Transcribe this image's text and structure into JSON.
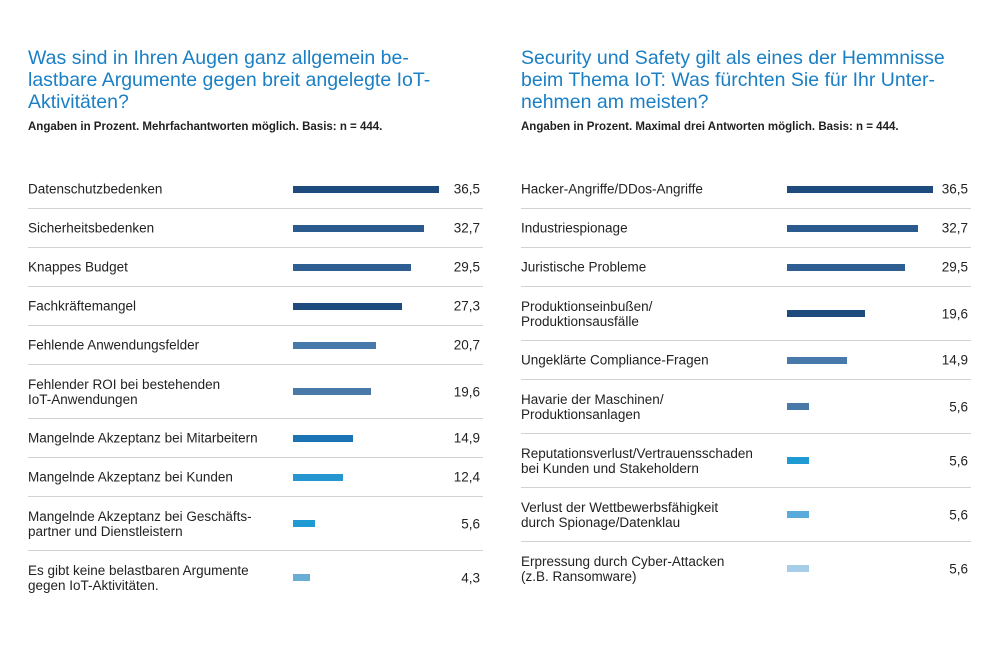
{
  "chart_data": [
    {
      "type": "bar",
      "orientation": "horizontal",
      "title": "Was sind in Ihren Augen ganz allgemein be-\nlastbare Argumente gegen breit angelegte IoT-\nAktivitäten?",
      "subtitle": "Angaben in Prozent. Mehrfachantworten möglich. Basis: n = 444.",
      "xlim": [
        0,
        36.5
      ],
      "categories": [
        "Datenschutzbedenken",
        "Sicherheitsbedenken",
        "Knappes Budget",
        "Fachkräftemangel",
        "Fehlende Anwendungsfelder",
        "Fehlender ROI bei bestehenden\nIoT-Anwendungen",
        "Mangelnde Akzeptanz bei Mitarbeitern",
        "Mangelnde Akzeptanz bei Kunden",
        "Mangelnde Akzeptanz bei Geschäfts-\npartner und Dienstleistern",
        "Es gibt keine belastbaren Argumente\ngegen IoT-Aktivitäten."
      ],
      "values": [
        36.5,
        32.7,
        29.5,
        27.3,
        20.7,
        19.6,
        14.9,
        12.4,
        5.6,
        4.3
      ],
      "value_labels": [
        "36,5",
        "32,7",
        "29,5",
        "27,3",
        "20,7",
        "19,6",
        "14,9",
        "12,4",
        "5,6",
        "4,3"
      ],
      "colors": [
        "#1d4b7e",
        "#2a5a8e",
        "#2e5e92",
        "#1d4b7e",
        "#4779aa",
        "#4879a9",
        "#1b73b4",
        "#2596cf",
        "#1f9ad3",
        "#6aaed6"
      ]
    },
    {
      "type": "bar",
      "orientation": "horizontal",
      "title": "Security und Safety gilt als eines der Hemmnisse\nbeim Thema IoT: Was fürchten Sie für Ihr Unter-\nnehmen am meisten?",
      "subtitle": "Angaben in Prozent. Maximal drei Antworten möglich. Basis: n = 444.",
      "xlim": [
        0,
        36.5
      ],
      "categories": [
        "Hacker-Angriffe/DDos-Angriffe",
        "Industriespionage",
        "Juristische Probleme",
        "Produktionseinbußen/\nProduktionsausfälle",
        "Ungeklärte Compliance-Fragen",
        "Havarie der Maschinen/\nProduktionsanlagen",
        "Reputationsverlust/Vertrauensschaden\nbei Kunden und Stakeholdern",
        "Verlust der Wettbewerbsfähigkeit\ndurch Spionage/Datenklau",
        "Erpressung durch Cyber-Attacken\n(z.B. Ransomware)"
      ],
      "values": [
        36.5,
        32.7,
        29.5,
        19.6,
        14.9,
        5.6,
        5.6,
        5.6,
        5.6
      ],
      "value_labels": [
        "36,5",
        "32,7",
        "29,5",
        "19,6",
        "14,9",
        "5,6",
        "5,6",
        "5,6",
        "5,6"
      ],
      "colors": [
        "#1d4b7e",
        "#2a5a8e",
        "#2e5e92",
        "#1d4b7e",
        "#4779aa",
        "#4879a9",
        "#1f9ad3",
        "#5aaadb",
        "#a7cde8"
      ]
    }
  ]
}
